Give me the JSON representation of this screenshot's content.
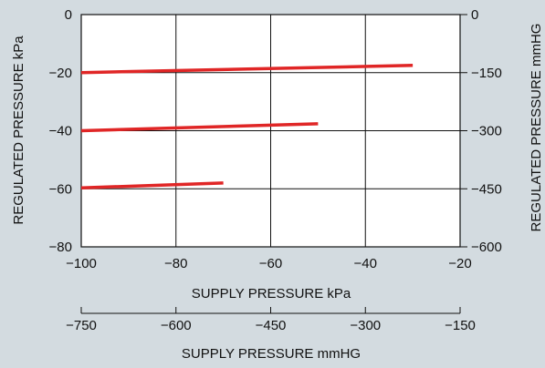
{
  "chart_data": {
    "type": "line",
    "title": "",
    "xlabel": "SUPPLY PRESSURE  kPa",
    "ylabel": "REGULATED PRESSURE  kPa",
    "x_secondary_label": "SUPPLY PRESSURE  mmHG",
    "y_secondary_label": "REGULATED PRESSURE  mmHG",
    "xlim": [
      -100,
      -20
    ],
    "ylim": [
      -80,
      0
    ],
    "x_ticks": [
      "−100",
      "−80",
      "−60",
      "−40",
      "−20"
    ],
    "y_ticks": [
      "0",
      "−20",
      "−40",
      "−60",
      "−80"
    ],
    "x_secondary_ticks": [
      "−750",
      "−600",
      "−450",
      "−300",
      "−150"
    ],
    "y_secondary_ticks": [
      "0",
      "−150",
      "−300",
      "−450",
      "−600"
    ],
    "grid": true,
    "series": [
      {
        "x": [
          -100,
          -30
        ],
        "y": [
          -20,
          -17.5
        ]
      },
      {
        "x": [
          -100,
          -50
        ],
        "y": [
          -40,
          -37.6
        ]
      },
      {
        "x": [
          -100,
          -70
        ],
        "y": [
          -59.7,
          -58
        ]
      }
    ],
    "line_color": "#e02626"
  }
}
